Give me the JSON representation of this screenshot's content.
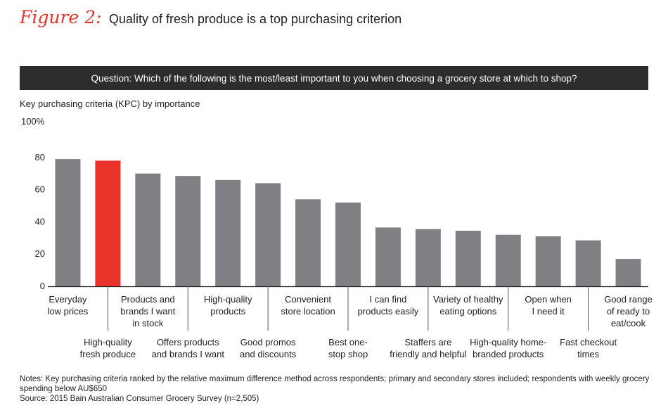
{
  "figure": {
    "label": "Figure 2:",
    "title": "Quality of fresh produce is a top purchasing criterion"
  },
  "question": "Question: Which of the following is the most/least important to you when choosing a grocery store at which to shop?",
  "chart_data": {
    "type": "bar",
    "subtitle": "Key purchasing criteria (KPC) by importance",
    "y_top_label": "100%",
    "yticks": [
      0,
      20,
      40,
      60,
      80
    ],
    "ylim": [
      0,
      100
    ],
    "grid": false,
    "categories": [
      [
        "Everyday",
        "low prices"
      ],
      [
        "High-quality",
        "fresh produce"
      ],
      [
        "Products and",
        "brands I want",
        "in stock"
      ],
      [
        "Offers products",
        "and brands I want"
      ],
      [
        "High-quality",
        "products"
      ],
      [
        "Good promos",
        "and discounts"
      ],
      [
        "Convenient",
        "store location"
      ],
      [
        "Best one-",
        "stop shop"
      ],
      [
        "I can find",
        "products easily"
      ],
      [
        "Staffers are",
        "friendly and helpful"
      ],
      [
        "Variety of healthy",
        "eating options"
      ],
      [
        "High-quality home-",
        "branded products"
      ],
      [
        "Open when",
        "I need it"
      ],
      [
        "Fast checkout",
        "times"
      ],
      [
        "Good range",
        "of ready to",
        "eat/cook"
      ]
    ],
    "values": [
      79,
      78,
      70,
      68.5,
      66,
      64,
      54,
      52,
      36.5,
      35.5,
      34.5,
      32,
      31,
      28.5,
      17
    ],
    "highlight_index": 1,
    "colors": {
      "bar": "#808084",
      "highlight": "#e8322a",
      "axis": "#222222"
    }
  },
  "notes": {
    "line1": "Notes: Key purchasing criteria ranked by the relative maximum difference method across respondents; primary and secondary stores included; respondents with weekly grocery",
    "line2": "spending below AU$650",
    "source": "Source: 2015 Bain Australian Consumer Grocery Survey (n=2,505)"
  }
}
